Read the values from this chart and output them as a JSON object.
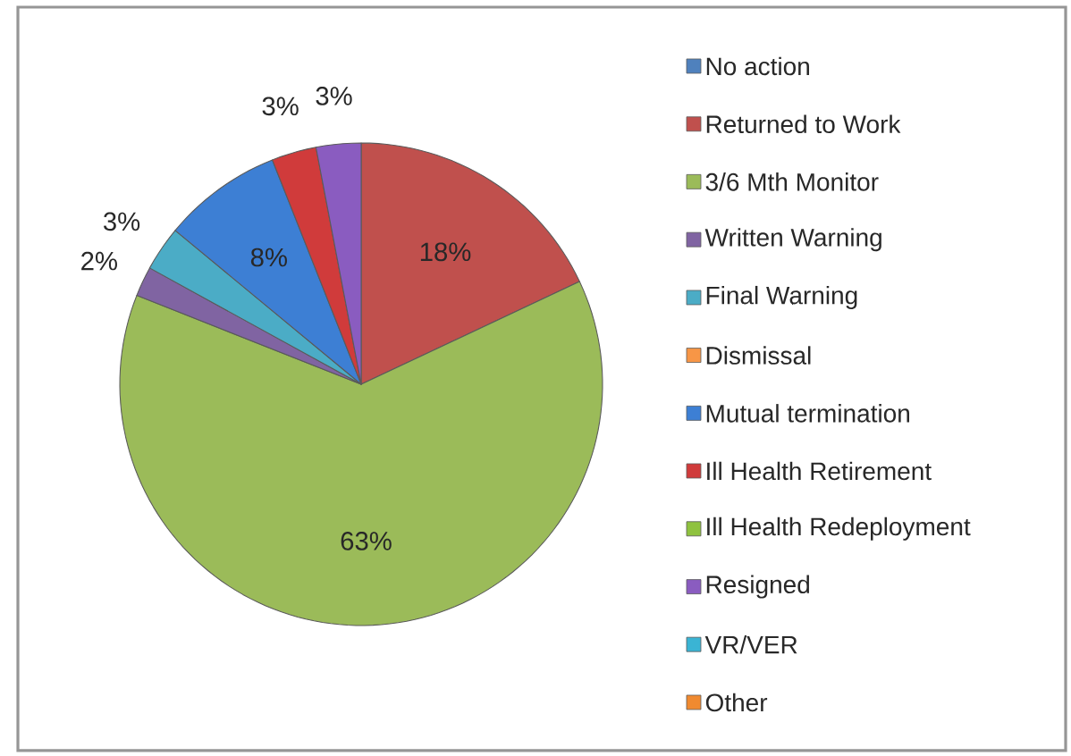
{
  "chart_data": {
    "type": "pie",
    "categories": [
      "No action",
      "Returned to Work",
      "3/6 Mth Monitor",
      "Written Warning",
      "Final Warning",
      "Dismissal",
      "Mutual termination",
      "Ill Health Retirement",
      "Ill Health Redeployment",
      "Resigned",
      "VR/VER",
      "Other"
    ],
    "values": [
      0,
      18,
      63,
      2,
      3,
      0,
      8,
      3,
      0,
      3,
      0,
      0
    ],
    "colors": [
      "#4f81bd",
      "#c0504d",
      "#9bbb59",
      "#8064a2",
      "#4bacc6",
      "#f79646",
      "#3d7fd4",
      "#d03b3b",
      "#8fc23f",
      "#8a5cc0",
      "#3ab4d4",
      "#f08a30"
    ],
    "value_labels": [
      null,
      "18%",
      "63%",
      "2%",
      "3%",
      null,
      "8%",
      "3%",
      null,
      "3%",
      null,
      null
    ],
    "legend": "right"
  }
}
